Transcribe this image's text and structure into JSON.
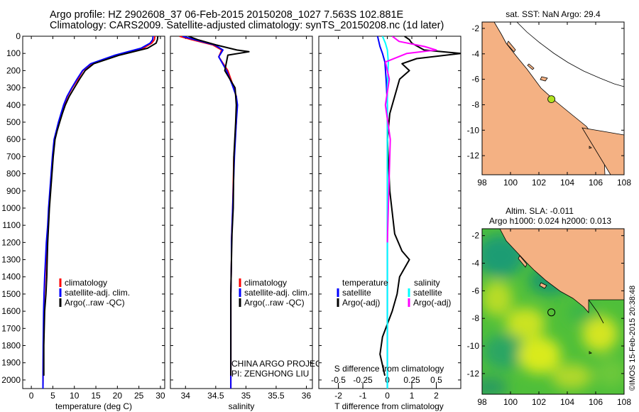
{
  "header": {
    "line1": "Argo profile: HZ 2902608_37 06-Feb-2015 20150208_1027 7.563S 102.881E",
    "line2": "Climatology: CARS2009. Satellite-adjusted climatology: synTS_20150208.nc (1d later)"
  },
  "colors": {
    "climatology": "#ff0000",
    "satellite": "#0000ff",
    "argo": "#000000",
    "salinity_satellite": "#00ffff",
    "salinity_argo": "#ff00ff",
    "land": "#f4b183",
    "sla_bright": "#00cc00",
    "float_marker": "#b0e020"
  },
  "chart_data": [
    {
      "type": "line",
      "id": "temperature",
      "xlabel": "temperature (deg C)",
      "xlim": [
        -2,
        31
      ],
      "ylim": [
        2050,
        0
      ],
      "xticks": [
        0,
        5,
        10,
        15,
        20,
        25,
        30
      ],
      "yticks": [
        0,
        100,
        200,
        300,
        400,
        500,
        600,
        700,
        800,
        900,
        1000,
        1100,
        1200,
        1300,
        1400,
        1500,
        1600,
        1700,
        1800,
        1900,
        2000
      ],
      "legend": [
        "climatology",
        "satellite-adj. clim.",
        "Argo(..raw -QC)"
      ],
      "series": [
        {
          "name": "climatology",
          "color": "#ff0000",
          "x": [
            28.7,
            28.6,
            28.0,
            26.0,
            20.0,
            14.0,
            12.0,
            10.8,
            9.5,
            8.4,
            7.6,
            7.0,
            6.4,
            5.9,
            5.4,
            5.0,
            4.7,
            4.4,
            4.1,
            3.9,
            3.6,
            3.4,
            3.2,
            3.0,
            2.9,
            2.8,
            2.7
          ],
          "y": [
            0,
            20,
            40,
            70,
            110,
            160,
            200,
            250,
            300,
            350,
            400,
            450,
            500,
            550,
            600,
            700,
            800,
            900,
            1000,
            1100,
            1200,
            1300,
            1400,
            1500,
            1600,
            1800,
            2050
          ]
        },
        {
          "name": "satellite-adj. clim.",
          "color": "#0000ff",
          "x": [
            28.3,
            28.2,
            27.6,
            25.5,
            19.5,
            13.8,
            11.9,
            10.6,
            9.4,
            8.3,
            7.5,
            6.9,
            6.3,
            5.8,
            5.3,
            4.9,
            4.6,
            4.3,
            4.0,
            3.8,
            3.5,
            3.3,
            3.1,
            2.95,
            2.85,
            2.75,
            2.7
          ],
          "y": [
            0,
            20,
            40,
            70,
            110,
            160,
            200,
            250,
            300,
            350,
            400,
            450,
            500,
            550,
            600,
            700,
            800,
            900,
            1000,
            1100,
            1200,
            1300,
            1400,
            1500,
            1600,
            1800,
            2050
          ]
        },
        {
          "name": "Argo(..raw -QC)",
          "color": "#000000",
          "x": [
            29.4,
            29.3,
            29.0,
            27.0,
            20.5,
            14.5,
            12.5,
            11.2,
            10.0,
            8.8,
            7.9,
            7.2,
            6.6,
            6.0,
            5.5,
            5.1,
            4.8,
            4.5,
            4.2,
            4.0,
            3.8,
            3.7,
            3.6,
            3.4,
            3.1,
            2.9,
            2.9
          ],
          "y": [
            0,
            20,
            40,
            70,
            110,
            160,
            200,
            250,
            300,
            350,
            400,
            450,
            500,
            550,
            600,
            700,
            800,
            900,
            1000,
            1100,
            1200,
            1300,
            1400,
            1500,
            1600,
            1800,
            1975
          ]
        }
      ]
    },
    {
      "type": "line",
      "id": "salinity",
      "xlabel": "salinity",
      "xlim": [
        33.75,
        36.1
      ],
      "ylim": [
        2050,
        0
      ],
      "xticks": [
        34,
        34.5,
        35,
        35.5,
        36
      ],
      "legend": [
        "climatology",
        "satellite-adj. clim.",
        "Argo(..raw -QC)"
      ],
      "annotation": [
        "CHINA ARGO PROJECT",
        "PI: ZENGHONG LIU"
      ],
      "series": [
        {
          "name": "climatology",
          "color": "#ff0000",
          "x": [
            33.9,
            34.1,
            34.45,
            34.6,
            34.55,
            34.7,
            34.78,
            34.84,
            34.85,
            34.84,
            34.8,
            34.78,
            34.76,
            34.76,
            34.75,
            34.75
          ],
          "y": [
            0,
            20,
            50,
            80,
            120,
            200,
            280,
            350,
            400,
            500,
            700,
            1000,
            1200,
            1300,
            1500,
            2050
          ]
        },
        {
          "name": "satellite-adj. clim.",
          "color": "#0000ff",
          "x": [
            33.95,
            34.15,
            34.48,
            34.62,
            34.55,
            34.68,
            34.77,
            34.84,
            34.86,
            34.84,
            34.81,
            34.78,
            34.76,
            34.76,
            34.75,
            34.75
          ],
          "y": [
            0,
            20,
            50,
            80,
            120,
            200,
            280,
            350,
            400,
            500,
            700,
            1000,
            1200,
            1300,
            1500,
            2050
          ]
        },
        {
          "name": "Argo(..raw -QC)",
          "color": "#000000",
          "x": [
            34.05,
            34.2,
            34.5,
            34.85,
            35.05,
            34.7,
            34.65,
            34.82,
            34.84,
            34.83,
            34.8,
            34.79,
            34.77,
            34.76,
            34.75,
            34.75
          ],
          "y": [
            0,
            20,
            50,
            80,
            90,
            110,
            200,
            300,
            400,
            500,
            700,
            1000,
            1150,
            1300,
            1500,
            1975
          ]
        }
      ]
    },
    {
      "type": "line",
      "id": "difference",
      "xlabel": "T difference from climatology",
      "xlabel_top": "S difference from climatology",
      "xlim": [
        -2.8,
        3
      ],
      "ylim": [
        2050,
        0
      ],
      "xticks": [
        -2,
        -1,
        0,
        1,
        2
      ],
      "xticks_top": [
        -0.5,
        -0.25,
        0,
        0.25,
        0.5
      ],
      "xticks_top_labels": [
        "-0.5",
        "-0.25",
        "0",
        "0.25",
        "0.5"
      ],
      "legend_temperature": {
        "title": "temperature",
        "items": [
          "satellite",
          "Argo(-adj)"
        ]
      },
      "legend_salinity": {
        "title": "salinity",
        "items": [
          "satellite",
          "Argo(-adj)"
        ]
      },
      "series": [
        {
          "name": "temperature satellite",
          "color": "#0000ff",
          "x": [
            -0.4,
            -0.35,
            -0.3,
            -0.2,
            -0.1,
            -0.05,
            0,
            0,
            0,
            0,
            0
          ],
          "y": [
            0,
            30,
            60,
            100,
            150,
            250,
            400,
            700,
            1000,
            1500,
            2050
          ]
        },
        {
          "name": "temperature Argo(-adj)",
          "color": "#000000",
          "x": [
            0.7,
            0.9,
            1.0,
            1.5,
            3.0,
            1.2,
            0.6,
            0.9,
            0.5,
            0.3,
            0.1,
            0.0,
            0.1,
            0.3,
            0.6,
            0.9,
            0.5,
            0.4,
            0.2,
            -0.2,
            -0.3,
            -0.1
          ],
          "y": [
            0,
            20,
            40,
            80,
            100,
            130,
            160,
            200,
            250,
            350,
            450,
            600,
            900,
            1150,
            1250,
            1300,
            1400,
            1500,
            1600,
            1750,
            1850,
            1975
          ]
        },
        {
          "name": "salinity satellite",
          "color": "#00ffff",
          "x": [
            -0.05,
            -0.02,
            0.0,
            0.01,
            0.0,
            0.0,
            0.0
          ],
          "y": [
            0,
            40,
            80,
            150,
            300,
            1000,
            2050
          ]
        },
        {
          "name": "salinity Argo(-adj)",
          "color": "#ff00ff",
          "x": [
            0.05,
            0.12,
            0.38,
            0.5,
            0.2,
            -0.02,
            0.02,
            -0.02,
            0.03,
            0.02,
            0.01,
            0.0
          ],
          "y": [
            0,
            30,
            60,
            80,
            100,
            150,
            250,
            400,
            600,
            800,
            1000,
            1200
          ]
        }
      ]
    },
    {
      "type": "map",
      "id": "sst-map",
      "title": "sat. SST: NaN Argo: 29.4",
      "xlim": [
        98,
        108
      ],
      "ylim": [
        -13.5,
        -1.5
      ],
      "xticks": [
        98,
        100,
        102,
        104,
        106,
        108
      ],
      "yticks": [
        -2,
        -4,
        -6,
        -8,
        -10,
        -12
      ],
      "float": {
        "lon": 102.881,
        "lat": -7.563
      }
    },
    {
      "type": "map",
      "id": "sla-map",
      "title_line1": "Altim. SLA: -0.011",
      "title_line2": "Argo h1000: 0.024 h2000: 0.013",
      "xlim": [
        98,
        108
      ],
      "ylim": [
        -13.5,
        -1.5
      ],
      "xticks": [
        98,
        100,
        102,
        104,
        106,
        108
      ],
      "yticks": [
        -2,
        -4,
        -6,
        -8,
        -10,
        -12
      ],
      "float": {
        "lon": 102.881,
        "lat": -7.563
      }
    }
  ],
  "footer": {
    "stamp": "©IMOS 15-Feb-2015 20:38:48"
  }
}
